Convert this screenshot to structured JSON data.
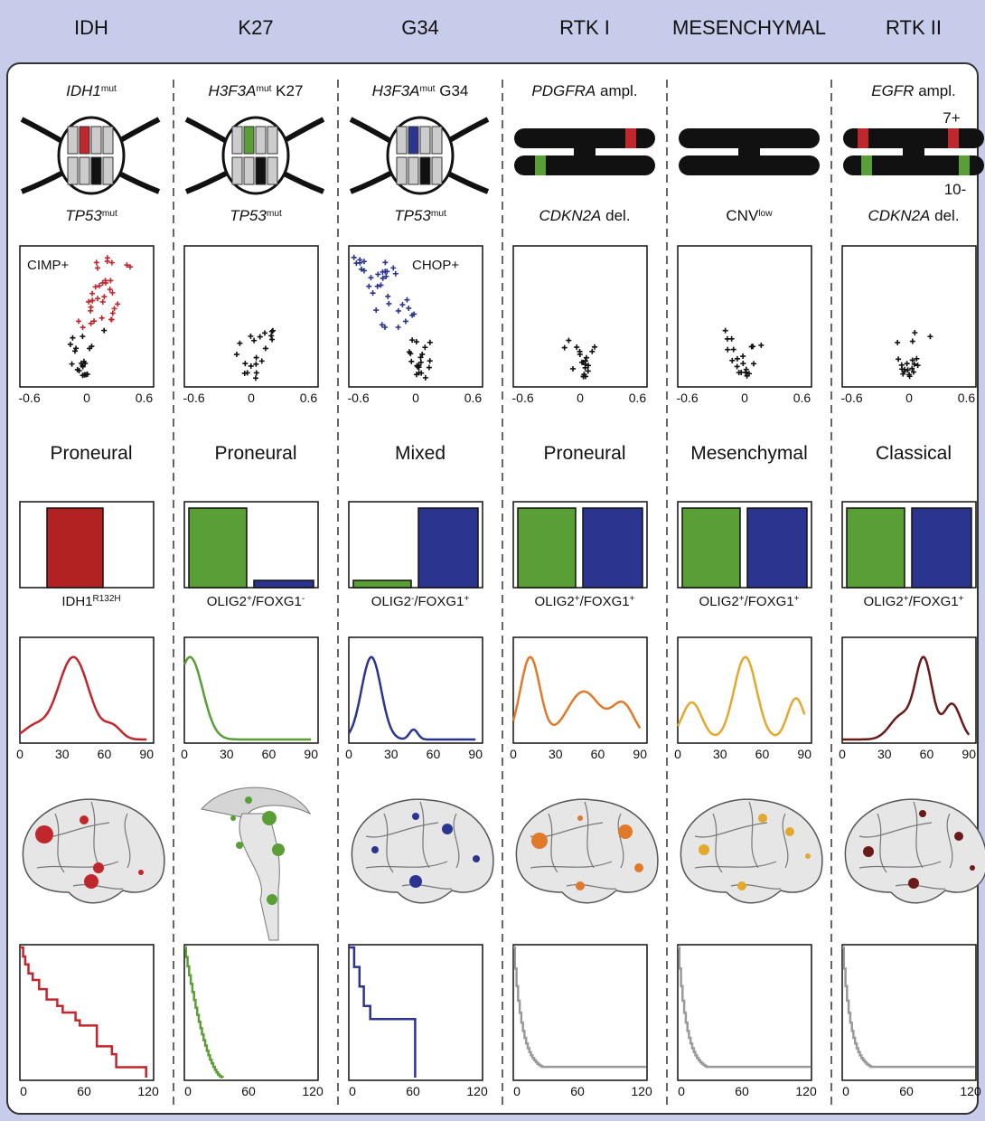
{
  "header": {
    "columns": [
      "IDH",
      "K27",
      "G34",
      "RTK I",
      "MESENCHYMAL",
      "RTK II"
    ]
  },
  "columns": [
    {
      "gene_top": {
        "gene": "IDH1",
        "sup": "mut"
      },
      "gene_bottom": {
        "gene": "TP53",
        "sup": "mut"
      },
      "scatter_label": "CIMP+",
      "subtype": "Proneural",
      "marker": [
        {
          "text": "IDH1",
          "sup": "R132H"
        }
      ]
    },
    {
      "gene_top": {
        "gene": "H3F3A",
        "sup": "mut",
        "text": " K27"
      },
      "gene_bottom": {
        "gene": "TP53",
        "sup": "mut"
      },
      "subtype": "Proneural",
      "marker": [
        {
          "text": "OLIG2",
          "sup": "+"
        },
        {
          "text": "/FOXG1",
          "sup": "-"
        }
      ]
    },
    {
      "gene_top": {
        "gene": "H3F3A",
        "sup": "mut",
        "text": " G34"
      },
      "gene_bottom": {
        "gene": "TP53",
        "sup": "mut"
      },
      "scatter_label": "CHOP+",
      "subtype": "Mixed",
      "marker": [
        {
          "text": "OLIG2",
          "sup": "-"
        },
        {
          "text": "/FOXG1",
          "sup": "+"
        }
      ]
    },
    {
      "gene_top": {
        "gene": "PDGFRA",
        "text": " ampl."
      },
      "gene_bottom": {
        "gene": "CDKN2A",
        "text": " del."
      },
      "subtype": "Proneural",
      "marker": [
        {
          "text": "OLIG2",
          "sup": "+"
        },
        {
          "text": "/FOXG1",
          "sup": "+"
        }
      ]
    },
    {
      "gene_bottom": {
        "text": "CNV",
        "sup": "low"
      },
      "subtype": "Mesenchymal",
      "marker": [
        {
          "text": "OLIG2",
          "sup": "+"
        },
        {
          "text": "/FOXG1",
          "sup": "+"
        }
      ]
    },
    {
      "gene_top": {
        "gene": "EGFR",
        "text": " ampl."
      },
      "chromosome_labels": [
        "7+",
        "10-"
      ],
      "gene_bottom": {
        "gene": "CDKN2A",
        "text": " del."
      },
      "subtype": "Classical",
      "marker": [
        {
          "text": "OLIG2",
          "sup": "+"
        },
        {
          "text": "/FOXG1",
          "sup": "+"
        }
      ]
    }
  ],
  "scatter_ticks": [
    -0.6,
    0,
    0.6
  ],
  "age_ticks": [
    0,
    30,
    60,
    90
  ],
  "survival_ticks": [
    0,
    60,
    120
  ]
}
